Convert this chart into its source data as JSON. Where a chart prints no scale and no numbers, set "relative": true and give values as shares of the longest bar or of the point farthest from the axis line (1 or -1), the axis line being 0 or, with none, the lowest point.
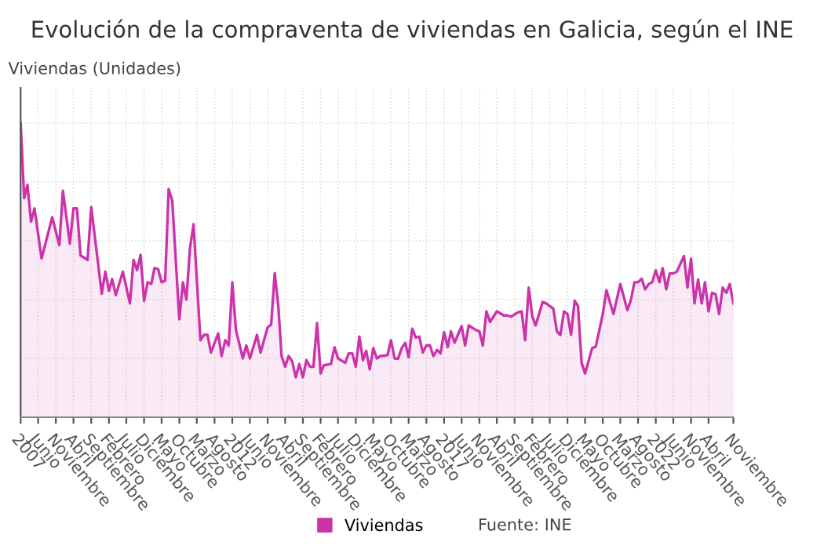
{
  "chart_data": {
    "type": "area",
    "title": "Evolución de la compraventa de viviendas en Galicia, según el INE",
    "ylabel": "Viviendas (Unidades)",
    "relative": true,
    "grid": true,
    "legend": "bottom",
    "marker": "none",
    "line_style": "solid",
    "annotations": [
      "Fuente: INE"
    ],
    "xlim": [
      "2007-01",
      "2023-11"
    ],
    "xticks": [
      {
        "value": "2007-01",
        "label": "2007"
      },
      {
        "value": "2007-06",
        "label": "Junio"
      },
      {
        "value": "2007-11",
        "label": "Noviembre"
      },
      {
        "value": "2008-04",
        "label": "Abril"
      },
      {
        "value": "2008-09",
        "label": "Septiembre"
      },
      {
        "value": "2009-02",
        "label": "Febrero"
      },
      {
        "value": "2009-07",
        "label": "Julio"
      },
      {
        "value": "2009-12",
        "label": "Diciembre"
      },
      {
        "value": "2010-05",
        "label": "Mayo"
      },
      {
        "value": "2010-10",
        "label": "Octubre"
      },
      {
        "value": "2011-03",
        "label": "Marzo"
      },
      {
        "value": "2011-08",
        "label": "Agosto"
      },
      {
        "value": "2012-01",
        "label": "2012"
      },
      {
        "value": "2012-06",
        "label": "Junio"
      },
      {
        "value": "2012-11",
        "label": "Noviembre"
      },
      {
        "value": "2013-04",
        "label": "Abril"
      },
      {
        "value": "2013-09",
        "label": "Septiembre"
      },
      {
        "value": "2014-02",
        "label": "Febrero"
      },
      {
        "value": "2014-07",
        "label": "Julio"
      },
      {
        "value": "2014-12",
        "label": "Diciembre"
      },
      {
        "value": "2015-05",
        "label": "Mayo"
      },
      {
        "value": "2015-10",
        "label": "Octubre"
      },
      {
        "value": "2016-03",
        "label": "Marzo"
      },
      {
        "value": "2016-08",
        "label": "Agosto"
      },
      {
        "value": "2017-01",
        "label": "2017"
      },
      {
        "value": "2017-06",
        "label": "Junio"
      },
      {
        "value": "2017-11",
        "label": "Noviembre"
      },
      {
        "value": "2018-04",
        "label": "Abril"
      },
      {
        "value": "2018-09",
        "label": "Septiembre"
      },
      {
        "value": "2019-02",
        "label": "Febrero"
      },
      {
        "value": "2019-07",
        "label": "Julio"
      },
      {
        "value": "2019-12",
        "label": "Diciembre"
      },
      {
        "value": "2020-05",
        "label": "Mayo"
      },
      {
        "value": "2020-10",
        "label": "Octubre"
      },
      {
        "value": "2021-03",
        "label": "Marzo"
      },
      {
        "value": "2021-08",
        "label": "Agosto"
      },
      {
        "value": "2022-01",
        "label": "2022"
      },
      {
        "value": "2022-06",
        "label": "Junio"
      },
      {
        "value": "2022-11",
        "label": "Noviembre"
      },
      {
        "value": "2023-04",
        "label": "Abril"
      },
      {
        "value": "2023-11",
        "label": "Noviembre"
      }
    ],
    "series": [
      {
        "name": "Viviendas",
        "color": "#cc33aa",
        "x": [
          "2007-01",
          "2007-02",
          "2007-03",
          "2007-04",
          "2007-05",
          "2007-07",
          "2007-10",
          "2007-12",
          "2008-01",
          "2008-03",
          "2008-04",
          "2008-05",
          "2008-06",
          "2008-08",
          "2008-09",
          "2008-12",
          "2009-01",
          "2009-02",
          "2009-03",
          "2009-04",
          "2009-06",
          "2009-08",
          "2009-09",
          "2009-10",
          "2009-11",
          "2009-12",
          "2010-01",
          "2010-02",
          "2010-03",
          "2010-04",
          "2010-05",
          "2010-06",
          "2010-07",
          "2010-08",
          "2010-10",
          "2010-11",
          "2010-12",
          "2011-01",
          "2011-02",
          "2011-04",
          "2011-05",
          "2011-06",
          "2011-07",
          "2011-09",
          "2011-10",
          "2011-11",
          "2011-12",
          "2012-01",
          "2012-02",
          "2012-04",
          "2012-05",
          "2012-06",
          "2012-08",
          "2012-09",
          "2012-11",
          "2012-12",
          "2013-01",
          "2013-02",
          "2013-03",
          "2013-04",
          "2013-05",
          "2013-06",
          "2013-07",
          "2013-08",
          "2013-09",
          "2013-10",
          "2013-11",
          "2013-12",
          "2014-01",
          "2014-02",
          "2014-03",
          "2014-05",
          "2014-06",
          "2014-07",
          "2014-09",
          "2014-10",
          "2014-11",
          "2014-12",
          "2015-01",
          "2015-02",
          "2015-03",
          "2015-04",
          "2015-05",
          "2015-06",
          "2015-07",
          "2015-09",
          "2015-10",
          "2015-11",
          "2015-12",
          "2016-01",
          "2016-02",
          "2016-03",
          "2016-04",
          "2016-05",
          "2016-06",
          "2016-07",
          "2016-08",
          "2016-09",
          "2016-10",
          "2016-11",
          "2016-12",
          "2017-01",
          "2017-02",
          "2017-03",
          "2017-04",
          "2017-06",
          "2017-07",
          "2017-08",
          "2017-10",
          "2017-11",
          "2017-12",
          "2018-01",
          "2018-02",
          "2018-04",
          "2018-06",
          "2018-07",
          "2018-08",
          "2018-10",
          "2018-11",
          "2018-12",
          "2019-01",
          "2019-02",
          "2019-03",
          "2019-05",
          "2019-06",
          "2019-08",
          "2019-09",
          "2019-10",
          "2019-11",
          "2019-12",
          "2020-01",
          "2020-02",
          "2020-03",
          "2020-04",
          "2020-05",
          "2020-07",
          "2020-08",
          "2020-10",
          "2020-11",
          "2021-01",
          "2021-03",
          "2021-05",
          "2021-06",
          "2021-07",
          "2021-08",
          "2021-09",
          "2021-10",
          "2021-11",
          "2021-12",
          "2022-01",
          "2022-02",
          "2022-03",
          "2022-04",
          "2022-05",
          "2022-06",
          "2022-07",
          "2022-09",
          "2022-10",
          "2022-11",
          "2022-12",
          "2023-01",
          "2023-02",
          "2023-03",
          "2023-04",
          "2023-05",
          "2023-06",
          "2023-07",
          "2023-08",
          "2023-09",
          "2023-10",
          "2023-11"
        ],
        "values": [
          1.0,
          0.745,
          0.79,
          0.665,
          0.71,
          0.54,
          0.68,
          0.585,
          0.77,
          0.59,
          0.71,
          0.71,
          0.55,
          0.535,
          0.715,
          0.42,
          0.495,
          0.43,
          0.47,
          0.415,
          0.495,
          0.387,
          0.535,
          0.5,
          0.552,
          0.396,
          0.459,
          0.453,
          0.507,
          0.504,
          0.459,
          0.464,
          0.776,
          0.737,
          0.333,
          0.459,
          0.4,
          0.575,
          0.656,
          0.262,
          0.28,
          0.28,
          0.22,
          0.285,
          0.208,
          0.262,
          0.244,
          0.459,
          0.297,
          0.2,
          0.244,
          0.2,
          0.28,
          0.22,
          0.306,
          0.315,
          0.49,
          0.378,
          0.208,
          0.172,
          0.208,
          0.19,
          0.136,
          0.181,
          0.136,
          0.194,
          0.172,
          0.172,
          0.32,
          0.149,
          0.177,
          0.181,
          0.238,
          0.2,
          0.185,
          0.217,
          0.217,
          0.172,
          0.274,
          0.194,
          0.226,
          0.163,
          0.235,
          0.2,
          0.208,
          0.211,
          0.262,
          0.2,
          0.199,
          0.235,
          0.253,
          0.204,
          0.301,
          0.271,
          0.274,
          0.22,
          0.244,
          0.244,
          0.208,
          0.229,
          0.217,
          0.289,
          0.238,
          0.292,
          0.253,
          0.31,
          0.244,
          0.312,
          0.297,
          0.292,
          0.244,
          0.36,
          0.324,
          0.36,
          0.346,
          0.346,
          0.342,
          0.357,
          0.36,
          0.262,
          0.441,
          0.342,
          0.312,
          0.392,
          0.387,
          0.369,
          0.292,
          0.28,
          0.36,
          0.351,
          0.28,
          0.396,
          0.378,
          0.185,
          0.149,
          0.235,
          0.24,
          0.351,
          0.432,
          0.351,
          0.453,
          0.364,
          0.4,
          0.459,
          0.459,
          0.471,
          0.435,
          0.453,
          0.459,
          0.5,
          0.459,
          0.507,
          0.435,
          0.489,
          0.489,
          0.495,
          0.548,
          0.441,
          0.539,
          0.387,
          0.468,
          0.387,
          0.459,
          0.36,
          0.423,
          0.418,
          0.351,
          0.441,
          0.423,
          0.453,
          0.387
        ]
      }
    ]
  }
}
